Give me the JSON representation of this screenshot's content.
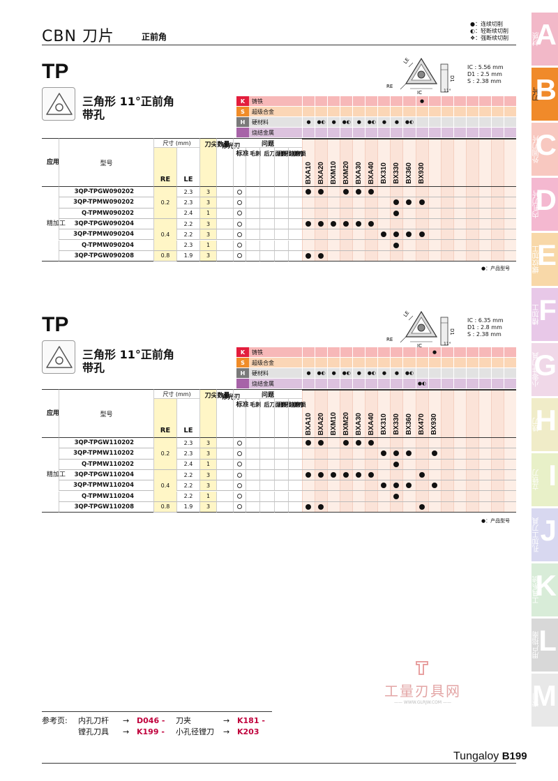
{
  "header": {
    "title": "CBN 刀片",
    "subtitle": "正前角",
    "legend": [
      {
        "sym": "●",
        "text": "连续切削"
      },
      {
        "sym": "◐",
        "text": "轻断续切削"
      },
      {
        "sym": "❖",
        "text": "强断续切削"
      }
    ]
  },
  "section1": {
    "code": "TP",
    "desc1": "三角形 11°正前角",
    "desc2": "带孔",
    "diagram_labels": {
      "le": "LE",
      "re": "RE",
      "ic": "IC",
      "s": "S",
      "d1": "D1",
      "deg": "11°"
    },
    "specs": [
      "IC : 5.56 mm",
      "D1 : 2.5 mm",
      "S : 2.38 mm"
    ],
    "materials": [
      {
        "code": "K",
        "name": "铸铁",
        "marks": [
          "",
          "",
          "",
          "",
          "",
          "",
          "",
          "",
          "",
          "●",
          "",
          "",
          "",
          "",
          "",
          "",
          ""
        ]
      },
      {
        "code": "S",
        "name": "超级合金",
        "marks": [
          "",
          "",
          "",
          "",
          "",
          "",
          "",
          "",
          "",
          "",
          "",
          "",
          "",
          "",
          "",
          "",
          ""
        ]
      },
      {
        "code": "H",
        "name": "硬材料",
        "marks": [
          "●",
          "●◐",
          "●",
          "●◐",
          "●",
          "●◐",
          "●",
          "●",
          "●◐",
          "",
          "",
          "",
          "",
          "",
          "",
          "",
          ""
        ]
      },
      {
        "code": "",
        "name": "烧结金属",
        "marks": [
          "",
          "",
          "",
          "",
          "",
          "",
          "",
          "",
          "",
          "",
          "",
          "",
          "",
          "",
          "",
          "",
          ""
        ]
      }
    ],
    "headers": {
      "usage": "应用",
      "model": "型号",
      "dims": "尺寸 (mm)",
      "re": "RE",
      "le": "LE",
      "corners": "刀尖数量",
      "wiper": "修光刃",
      "standard": "标准",
      "problem": "问题",
      "burr": "毛刺",
      "flank": "后刀面磨损",
      "crater": "月牙洼磨损",
      "chip": "崩刃"
    },
    "grades": [
      "BXA10",
      "BXA20",
      "BXM10",
      "BXM20",
      "BXA30",
      "BXA40",
      "BX310",
      "BX330",
      "BX360",
      "BX930"
    ],
    "usage": "精加工",
    "rows": [
      {
        "model": "3QP-TPGW090202",
        "le": "2.3",
        "corners": "3",
        "marks": [
          1,
          1,
          0,
          1,
          1,
          1,
          0,
          0,
          0,
          0
        ]
      },
      {
        "model": "3QP-TPMW090202",
        "le": "2.3",
        "corners": "3",
        "marks": [
          0,
          0,
          0,
          0,
          0,
          0,
          0,
          1,
          1,
          1
        ]
      },
      {
        "model": "Q-TPMW090202",
        "le": "2.4",
        "corners": "1",
        "marks": [
          0,
          0,
          0,
          0,
          0,
          0,
          0,
          1,
          0,
          0
        ]
      },
      {
        "model": "3QP-TPGW090204",
        "le": "2.2",
        "corners": "3",
        "marks": [
          1,
          1,
          1,
          1,
          1,
          1,
          0,
          0,
          0,
          0
        ]
      },
      {
        "model": "3QP-TPMW090204",
        "le": "2.2",
        "corners": "3",
        "marks": [
          0,
          0,
          0,
          0,
          0,
          0,
          1,
          1,
          1,
          1
        ]
      },
      {
        "model": "Q-TPMW090204",
        "le": "2.3",
        "corners": "1",
        "marks": [
          0,
          0,
          0,
          0,
          0,
          0,
          0,
          1,
          0,
          0
        ]
      },
      {
        "model": "3QP-TPGW090208",
        "le": "1.9",
        "corners": "3",
        "marks": [
          1,
          1,
          0,
          0,
          0,
          0,
          0,
          0,
          0,
          0
        ]
      }
    ],
    "re_groups": [
      {
        "value": "0.2",
        "rows": 3
      },
      {
        "value": "0.4",
        "rows": 3
      },
      {
        "value": "0.8",
        "rows": 1
      }
    ],
    "note": "●：产品型号"
  },
  "section2": {
    "code": "TP",
    "desc1": "三角形 11°正前角",
    "desc2": "带孔",
    "diagram_labels": {
      "le": "LE",
      "re": "RE",
      "ic": "IC",
      "s": "S",
      "d1": "D1",
      "deg": "11°"
    },
    "specs": [
      "IC : 6.35 mm",
      "D1 : 2.8 mm",
      "S : 2.38 mm"
    ],
    "materials": [
      {
        "code": "K",
        "name": "铸铁",
        "marks": [
          "",
          "",
          "",
          "",
          "",
          "",
          "",
          "",
          "",
          "",
          "●",
          "",
          "",
          "",
          "",
          "",
          ""
        ]
      },
      {
        "code": "S",
        "name": "超级合金",
        "marks": [
          "",
          "",
          "",
          "",
          "",
          "",
          "",
          "",
          "",
          "",
          "",
          "",
          "",
          "",
          "",
          "",
          ""
        ]
      },
      {
        "code": "H",
        "name": "硬材料",
        "marks": [
          "●",
          "●◐",
          "●",
          "●◐",
          "●",
          "●◐",
          "●",
          "●",
          "●◐",
          "",
          "",
          "",
          "",
          "",
          "",
          "",
          ""
        ]
      },
      {
        "code": "",
        "name": "烧结金属",
        "marks": [
          "",
          "",
          "",
          "",
          "",
          "",
          "",
          "",
          "",
          "●◐",
          "",
          "",
          "",
          "",
          "",
          "",
          ""
        ]
      }
    ],
    "headers": {
      "usage": "应用",
      "model": "型号",
      "dims": "尺寸 (mm)",
      "re": "RE",
      "le": "LE",
      "corners": "刀尖数量",
      "wiper": "修光刃",
      "standard": "标准",
      "problem": "问题",
      "burr": "毛刺",
      "flank": "后刀面磨损",
      "crater": "月牙洼磨损",
      "chip": "崩刃"
    },
    "grades": [
      "BXA10",
      "BXA20",
      "BXM10",
      "BXM20",
      "BXA30",
      "BXA40",
      "BX310",
      "BX330",
      "BX360",
      "BX470",
      "BX930"
    ],
    "usage": "精加工",
    "rows": [
      {
        "model": "3QP-TPGW110202",
        "le": "2.3",
        "corners": "3",
        "marks": [
          1,
          1,
          0,
          1,
          1,
          1,
          0,
          0,
          0,
          0,
          0
        ]
      },
      {
        "model": "3QP-TPMW110202",
        "le": "2.3",
        "corners": "3",
        "marks": [
          0,
          0,
          0,
          0,
          0,
          0,
          1,
          1,
          1,
          0,
          1
        ]
      },
      {
        "model": "Q-TPMW110202",
        "le": "2.4",
        "corners": "1",
        "marks": [
          0,
          0,
          0,
          0,
          0,
          0,
          0,
          1,
          0,
          0,
          0
        ]
      },
      {
        "model": "3QP-TPGW110204",
        "le": "2.2",
        "corners": "3",
        "marks": [
          1,
          1,
          1,
          1,
          1,
          1,
          0,
          0,
          0,
          1,
          0
        ]
      },
      {
        "model": "3QP-TPMW110204",
        "le": "2.2",
        "corners": "3",
        "marks": [
          0,
          0,
          0,
          0,
          0,
          0,
          1,
          1,
          1,
          0,
          1
        ]
      },
      {
        "model": "Q-TPMW110204",
        "le": "2.2",
        "corners": "1",
        "marks": [
          0,
          0,
          0,
          0,
          0,
          0,
          0,
          1,
          0,
          0,
          0
        ]
      },
      {
        "model": "3QP-TPGW110208",
        "le": "1.9",
        "corners": "3",
        "marks": [
          1,
          1,
          0,
          0,
          0,
          0,
          0,
          0,
          0,
          1,
          0
        ]
      }
    ],
    "re_groups": [
      {
        "value": "0.2",
        "rows": 3
      },
      {
        "value": "0.4",
        "rows": 3
      },
      {
        "value": "0.8",
        "rows": 1
      }
    ],
    "note": "●：产品型号"
  },
  "side_tabs": [
    {
      "letter": "A",
      "label": "材质",
      "color": "#f2b8c8"
    },
    {
      "letter": "B",
      "label": "刀片",
      "color": "#f08a2a",
      "active": true
    },
    {
      "letter": "C",
      "label": "外圆刀片",
      "color": "#f8c8c0"
    },
    {
      "letter": "D",
      "label": "内孔刀片",
      "color": "#f4b8d0"
    },
    {
      "letter": "E",
      "label": "螺纹加工",
      "color": "#f8d8a8"
    },
    {
      "letter": "F",
      "label": "槽加工",
      "color": "#e8c8e8"
    },
    {
      "letter": "G",
      "label": "小零件刀具",
      "color": "#f0d8e8"
    },
    {
      "letter": "H",
      "label": "铣刀",
      "color": "#f0ecc8"
    },
    {
      "letter": "I",
      "label": "立铣刀",
      "color": "#e8f0c8"
    },
    {
      "letter": "J",
      "label": "孔加工刀具",
      "color": "#d8d8f0"
    },
    {
      "letter": "K",
      "label": "工具系统",
      "color": "#d8ecd8"
    },
    {
      "letter": "L",
      "label": "用户指南",
      "color": "#d8d8d8"
    },
    {
      "letter": "M",
      "label": "索引",
      "color": "#e8e8e8"
    }
  ],
  "watermark": {
    "brand": "工量刃具网",
    "url": "—— WWW.GLRJW.COM ——"
  },
  "footer": {
    "ref_label": "参考页:",
    "refs": [
      {
        "label": "内孔刀杆",
        "page": "D046 -"
      },
      {
        "label": "刀夹",
        "page": "K181 -"
      },
      {
        "label": "镗孔刀具",
        "page": "K199 -"
      },
      {
        "label": "小孔径镗刀",
        "page": "K203"
      }
    ],
    "brand": "Tungaloy",
    "page": "B199"
  }
}
